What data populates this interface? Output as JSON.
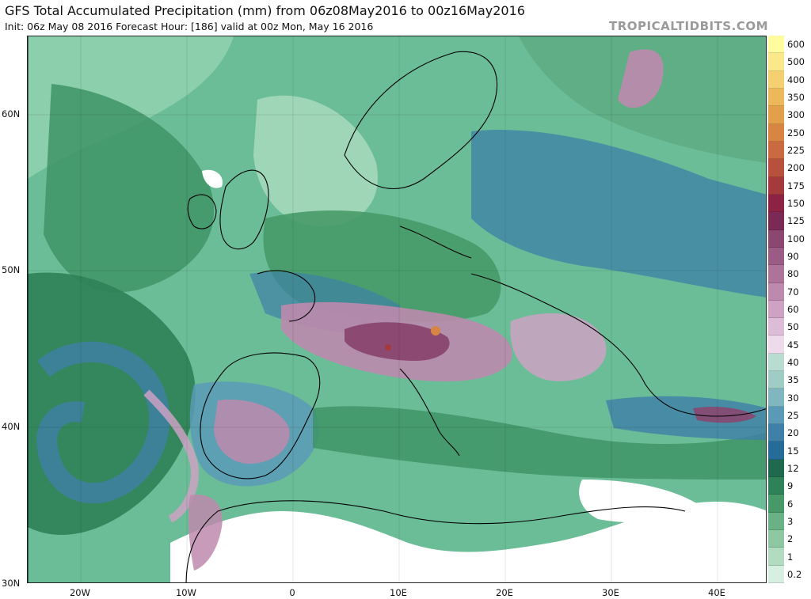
{
  "header": {
    "title": "GFS Total Accumulated Precipitation (mm) from 06z08May2016 to 00z16May2016",
    "subtitle": "Init: 06z May 08 2016   Forecast Hour: [186]   valid at 00z Mon, May 16 2016",
    "site": "TROPICALTIDBITS.COM"
  },
  "axes": {
    "lat_labels": [
      "60N",
      "50N",
      "40N",
      "30N"
    ],
    "lon_labels": [
      "20W",
      "10W",
      "0",
      "10E",
      "20E",
      "30E",
      "40E"
    ]
  },
  "colorbar": {
    "levels": [
      {
        "label": "600",
        "color": "#fffca0"
      },
      {
        "label": "500",
        "color": "#fbe88a"
      },
      {
        "label": "400",
        "color": "#f4d070"
      },
      {
        "label": "350",
        "color": "#ecb85a"
      },
      {
        "label": "300",
        "color": "#e3a04a"
      },
      {
        "label": "250",
        "color": "#d88544"
      },
      {
        "label": "225",
        "color": "#c96a40"
      },
      {
        "label": "200",
        "color": "#b8503e"
      },
      {
        "label": "175",
        "color": "#a43a3c"
      },
      {
        "label": "150",
        "color": "#8c2244"
      },
      {
        "label": "125",
        "color": "#7a2a55"
      },
      {
        "label": "100",
        "color": "#8a4770"
      },
      {
        "label": "90",
        "color": "#9a5c85"
      },
      {
        "label": "80",
        "color": "#ad7399"
      },
      {
        "label": "70",
        "color": "#bd89ad"
      },
      {
        "label": "60",
        "color": "#cda2c3"
      },
      {
        "label": "50",
        "color": "#ddbcd8"
      },
      {
        "label": "45",
        "color": "#eddaea"
      },
      {
        "label": "40",
        "color": "#b8dcd0"
      },
      {
        "label": "35",
        "color": "#9fcdc5"
      },
      {
        "label": "30",
        "color": "#7fb6c0"
      },
      {
        "label": "25",
        "color": "#5b9ab7"
      },
      {
        "label": "20",
        "color": "#3e80a8"
      },
      {
        "label": "15",
        "color": "#256c98"
      },
      {
        "label": "12",
        "color": "#1f6a4e"
      },
      {
        "label": "9",
        "color": "#2f8157"
      },
      {
        "label": "6",
        "color": "#479a68"
      },
      {
        "label": "3",
        "color": "#6ab285"
      },
      {
        "label": "2",
        "color": "#8ec8a3"
      },
      {
        "label": "1",
        "color": "#b1dcc0"
      },
      {
        "label": "0.2",
        "color": "#d6efe0"
      }
    ]
  },
  "colors": {
    "ocean_base": "#5fb891",
    "heavy_green": "#2f8157",
    "blue": "#3e80a8",
    "purple": "#bd89ad",
    "dry": "#ffffff"
  }
}
